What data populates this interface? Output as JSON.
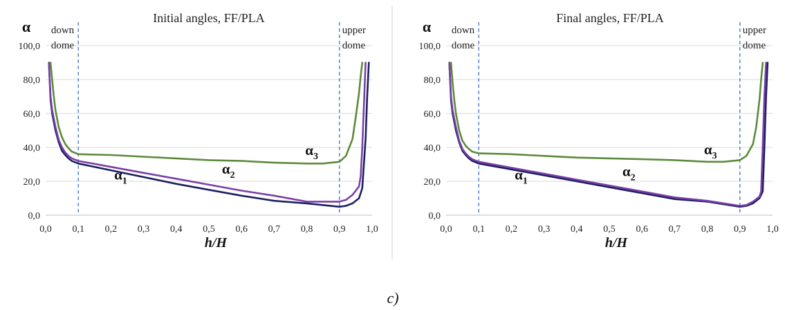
{
  "figure": {
    "caption": "c)"
  },
  "colors": {
    "alpha1": "#1b1f5e",
    "alpha2": "#7a3fa6",
    "alpha3": "#5b8a3a",
    "marker": "#3b6fd0",
    "divider": "#cfcfcf"
  },
  "chart_data": [
    {
      "type": "line",
      "title": "Initial angles, FF/PLA",
      "xlabel": "h/H",
      "ylabel": "α",
      "xlim": [
        0.0,
        1.0
      ],
      "ylim": [
        0.0,
        100.0
      ],
      "xticks": [
        "0,0",
        "0,1",
        "0,2",
        "0,3",
        "0,4",
        "0,5",
        "0,6",
        "0,7",
        "0,8",
        "0,9",
        "1,0"
      ],
      "yticks": [
        "0,0",
        "20,0",
        "40,0",
        "60,0",
        "80,0",
        "100,0"
      ],
      "grid": "horizontal",
      "vlines": [
        {
          "x": 0.1,
          "label": [
            "down",
            "dome"
          ]
        },
        {
          "x": 0.9,
          "label": [
            "upper",
            "dome"
          ]
        }
      ],
      "series": [
        {
          "name": "α1",
          "label_main": "α",
          "label_sub": "1",
          "color_key": "alpha1",
          "label_at": [
            0.21,
            21
          ],
          "x": [
            0.01,
            0.015,
            0.02,
            0.03,
            0.04,
            0.05,
            0.06,
            0.07,
            0.08,
            0.1,
            0.2,
            0.3,
            0.4,
            0.5,
            0.6,
            0.7,
            0.8,
            0.9,
            0.92,
            0.94,
            0.96,
            0.97,
            0.98,
            0.985,
            0.99
          ],
          "y": [
            90,
            68,
            60,
            50,
            43,
            38,
            35.5,
            33.5,
            32,
            30.5,
            26.5,
            22.5,
            18.5,
            15,
            11.5,
            8.5,
            7,
            5,
            5.5,
            7,
            10,
            16,
            45,
            70,
            90
          ]
        },
        {
          "name": "α2",
          "label_main": "α",
          "label_sub": "2",
          "color_key": "alpha2",
          "label_at": [
            0.54,
            24.5
          ],
          "x": [
            0.01,
            0.015,
            0.02,
            0.03,
            0.04,
            0.05,
            0.06,
            0.07,
            0.08,
            0.1,
            0.2,
            0.3,
            0.4,
            0.5,
            0.6,
            0.7,
            0.8,
            0.9,
            0.92,
            0.94,
            0.96,
            0.965,
            0.97,
            0.975,
            0.98
          ],
          "y": [
            90,
            70,
            62,
            52,
            44.5,
            40,
            37,
            35,
            33.5,
            32,
            28.5,
            25,
            21.5,
            18,
            14.5,
            11.5,
            8,
            8,
            9,
            12,
            17,
            23,
            40,
            65,
            90
          ]
        },
        {
          "name": "α3",
          "label_main": "α",
          "label_sub": "3",
          "color_key": "alpha3",
          "label_at": [
            0.795,
            35.5
          ],
          "x": [
            0.015,
            0.02,
            0.025,
            0.03,
            0.04,
            0.05,
            0.06,
            0.07,
            0.08,
            0.1,
            0.2,
            0.3,
            0.4,
            0.5,
            0.6,
            0.7,
            0.8,
            0.85,
            0.9,
            0.92,
            0.94,
            0.95,
            0.96,
            0.965,
            0.97
          ],
          "y": [
            90,
            80,
            70,
            62,
            52,
            46,
            42,
            39.5,
            37.5,
            36,
            35.5,
            34.5,
            33.5,
            32.5,
            32,
            31,
            30.5,
            30.5,
            31.5,
            35,
            45,
            58,
            72,
            82,
            90
          ]
        }
      ]
    },
    {
      "type": "line",
      "title": "Final angles, FF/PLA",
      "xlabel": "h/H",
      "ylabel": "α",
      "xlim": [
        0.0,
        1.0
      ],
      "ylim": [
        0.0,
        100.0
      ],
      "xticks": [
        "0,0",
        "0,1",
        "0,2",
        "0,3",
        "0,4",
        "0,5",
        "0,6",
        "0,7",
        "0,8",
        "0,9",
        "1,0"
      ],
      "yticks": [
        "0,0",
        "20,0",
        "40,0",
        "60,0",
        "80,0",
        "100,0"
      ],
      "grid": "horizontal",
      "vlines": [
        {
          "x": 0.1,
          "label": [
            "down",
            "dome"
          ]
        },
        {
          "x": 0.9,
          "label": [
            "upper",
            "dome"
          ]
        }
      ],
      "series": [
        {
          "name": "α1",
          "label_main": "α",
          "label_sub": "1",
          "color_key": "alpha1",
          "label_at": [
            0.21,
            21
          ],
          "x": [
            0.01,
            0.015,
            0.02,
            0.03,
            0.04,
            0.05,
            0.06,
            0.07,
            0.08,
            0.1,
            0.2,
            0.3,
            0.4,
            0.5,
            0.6,
            0.7,
            0.8,
            0.9,
            0.92,
            0.94,
            0.96,
            0.97,
            0.975,
            0.98,
            0.985
          ],
          "y": [
            90,
            68,
            60,
            50,
            43,
            38,
            35.5,
            33.5,
            32,
            30.5,
            27,
            23.5,
            20,
            16.5,
            13,
            9.5,
            8,
            5,
            5.5,
            7,
            10,
            14,
            40,
            70,
            90
          ]
        },
        {
          "name": "α2",
          "label_main": "α",
          "label_sub": "2",
          "color_key": "alpha2",
          "label_at": [
            0.54,
            23
          ],
          "x": [
            0.01,
            0.015,
            0.02,
            0.03,
            0.04,
            0.05,
            0.06,
            0.07,
            0.08,
            0.1,
            0.2,
            0.3,
            0.4,
            0.5,
            0.6,
            0.7,
            0.8,
            0.9,
            0.92,
            0.94,
            0.96,
            0.965,
            0.97,
            0.975,
            0.98
          ],
          "y": [
            90,
            70,
            62,
            52,
            44,
            39,
            36.5,
            34.5,
            33,
            31.5,
            28,
            24.5,
            21,
            17.5,
            14,
            10.5,
            8.5,
            5.5,
            6,
            8,
            11,
            14,
            40,
            70,
            90
          ]
        },
        {
          "name": "α3",
          "label_main": "α",
          "label_sub": "3",
          "color_key": "alpha3",
          "label_at": [
            0.79,
            36
          ],
          "x": [
            0.015,
            0.02,
            0.025,
            0.03,
            0.04,
            0.05,
            0.06,
            0.07,
            0.08,
            0.1,
            0.2,
            0.3,
            0.4,
            0.5,
            0.6,
            0.7,
            0.8,
            0.85,
            0.9,
            0.92,
            0.94,
            0.95,
            0.96,
            0.965,
            0.97
          ],
          "y": [
            90,
            78,
            68,
            60,
            50,
            44,
            41,
            39,
            37.5,
            36.5,
            36,
            35,
            34,
            33.5,
            33,
            32.5,
            31.5,
            31.5,
            32.5,
            35,
            42,
            52,
            68,
            80,
            90
          ]
        }
      ]
    }
  ]
}
